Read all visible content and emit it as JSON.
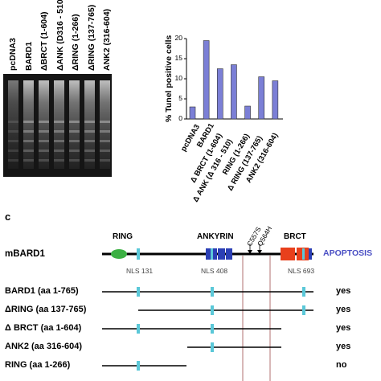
{
  "gel": {
    "lanes": [
      "pcDNA3",
      "BARD1",
      "ΔBRCT (1-604)",
      "ΔANK (D316 - 510)",
      "ΔRING (1-266)",
      "ΔRING (137-765)",
      "ANK2 (316-604)"
    ]
  },
  "chart_data": {
    "type": "bar",
    "categories": [
      "pcDNA3",
      "BARD1",
      "Δ BRCT (1-604)",
      "Δ ANK (Δ 316 - 510)",
      "RING (1-266)",
      "Δ RING (137-765)",
      "ANK2 (316-604)"
    ],
    "values": [
      3,
      19.5,
      12.5,
      13.5,
      3.2,
      10.5,
      9.5
    ],
    "ylabel": "% Tunel positive cells",
    "ylim": [
      0,
      20
    ],
    "yticks": [
      "0",
      "5",
      "10",
      "15",
      "20"
    ],
    "bar_color": "#7b7fd6",
    "grid": false
  },
  "panel_c": {
    "label": "c",
    "protein": "mBARD1",
    "apoptosis_label": "APOPTOSIS",
    "domains": {
      "ring": "RING",
      "ankyrin": "ANKYRIN",
      "brct": "BRCT"
    },
    "mutations": [
      "C557S",
      "Q564H"
    ],
    "nls": [
      "NLS 131",
      "NLS 408",
      "NLS 693"
    ],
    "constructs": [
      {
        "name": "BARD1 (aa 1-765)",
        "result": "yes"
      },
      {
        "name": "ΔRING (aa 137-765)",
        "result": "yes"
      },
      {
        "name": "Δ BRCT (aa 1-604)",
        "result": "yes"
      },
      {
        "name": "ANK2 (aa 316-604)",
        "result": "yes"
      },
      {
        "name": "RING (aa 1-266)",
        "result": "no"
      }
    ],
    "colors": {
      "ring": "#3cb043",
      "ankyrin": "#2b3fb5",
      "brct": "#e8401c",
      "nls": "#5bc8d8",
      "apoptosis": "#4a4fc4",
      "vline": "#b07070"
    }
  }
}
